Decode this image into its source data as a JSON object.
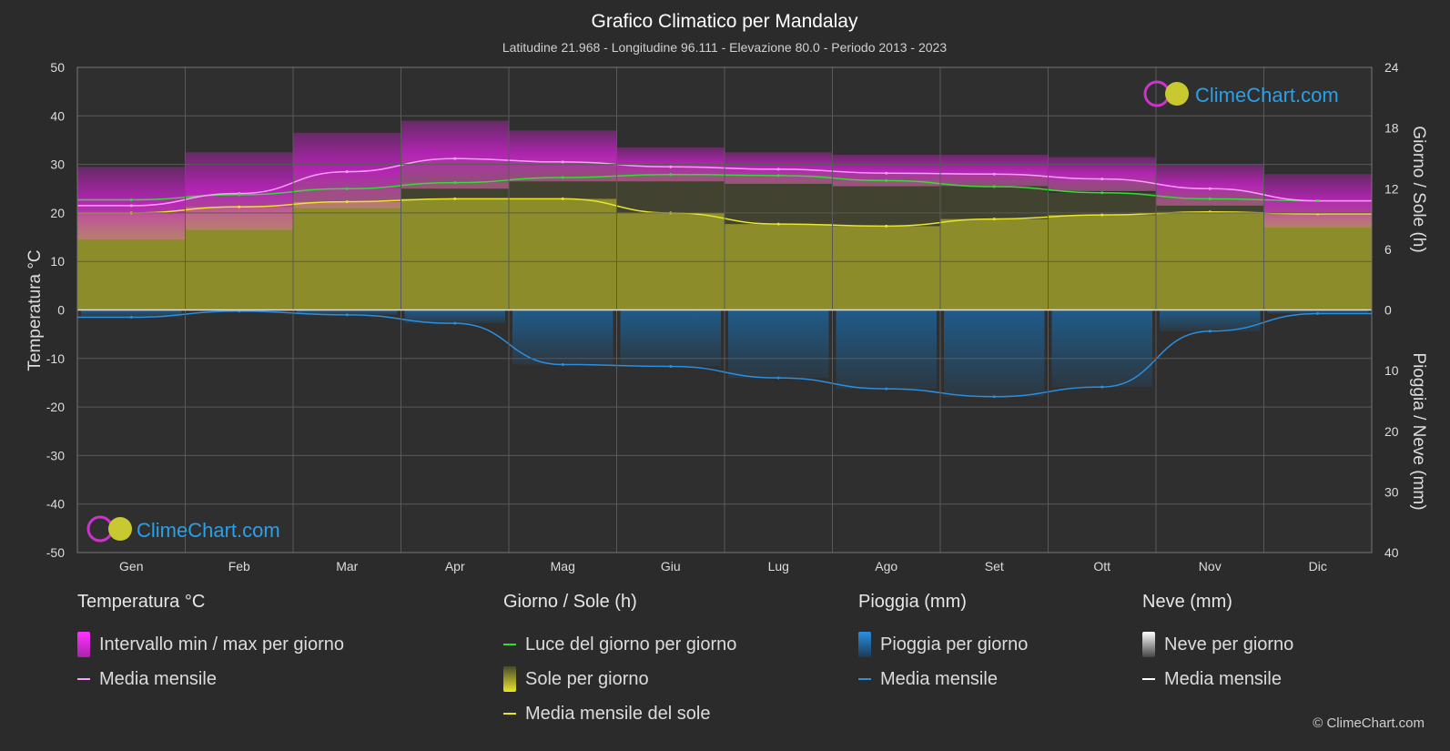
{
  "header": {
    "title": "Grafico Climatico per Mandalay",
    "subtitle": "Latitudine 21.968 - Longitudine 96.111 - Elevazione 80.0 - Periodo 2013 - 2023"
  },
  "watermark": "ClimeChart.com",
  "copyright": "© ClimeChart.com",
  "colors": {
    "background": "#2b2b2b",
    "temp_range": "#cc22cc",
    "temp_mean": "#ff9cff",
    "daylight": "#33dd33",
    "sun_fill": "#9c9c2a",
    "sun_mean": "#e6e62a",
    "rain": "#1a6aa8",
    "rain_mean": "#2a8fe0",
    "snow_mean": "#ffffff"
  },
  "chart_data": {
    "type": "area",
    "categories": [
      "Gen",
      "Feb",
      "Mar",
      "Apr",
      "Mag",
      "Giu",
      "Lug",
      "Ago",
      "Set",
      "Ott",
      "Nov",
      "Dic"
    ],
    "y_left": {
      "label": "Temperatura °C",
      "range": [
        -50,
        50
      ],
      "ticks": [
        "50",
        "40",
        "30",
        "20",
        "10",
        "0",
        "-10",
        "-20",
        "-30",
        "-40",
        "-50"
      ]
    },
    "y_right_top": {
      "label": "Giorno / Sole (h)",
      "range": [
        0,
        24
      ],
      "ticks": [
        "24",
        "18",
        "12",
        "6",
        "0"
      ]
    },
    "y_right_bottom": {
      "label": "Pioggia / Neve (mm)",
      "range": [
        0,
        40
      ],
      "ticks": [
        "0",
        "10",
        "20",
        "30",
        "40"
      ]
    },
    "series": [
      {
        "name": "Media mensile",
        "group": "temperature",
        "values": [
          21.5,
          24.0,
          28.5,
          31.2,
          30.5,
          29.5,
          29.0,
          28.2,
          28.0,
          27.0,
          25.0,
          22.5
        ]
      },
      {
        "name": "Intervallo min / max per giorno",
        "group": "temperature",
        "min": [
          14.5,
          16.5,
          21.0,
          25.0,
          26.5,
          26.5,
          26.0,
          25.5,
          25.5,
          24.5,
          21.5,
          17.0
        ],
        "max": [
          29.5,
          32.5,
          36.5,
          39.0,
          37.0,
          33.5,
          32.5,
          32.0,
          32.0,
          31.5,
          30.0,
          28.0
        ]
      },
      {
        "name": "Luce del giorno per giorno",
        "group": "sun",
        "values": [
          10.9,
          11.4,
          12.0,
          12.6,
          13.1,
          13.4,
          13.3,
          12.8,
          12.2,
          11.6,
          11.0,
          10.8
        ]
      },
      {
        "name": "Media mensile del sole",
        "group": "sun",
        "values": [
          9.6,
          10.2,
          10.7,
          11.0,
          11.0,
          9.6,
          8.5,
          8.3,
          9.0,
          9.4,
          9.7,
          9.5
        ]
      },
      {
        "name": "Media mensile",
        "group": "rain",
        "values": [
          1.2,
          0.2,
          0.8,
          2.2,
          9.0,
          9.3,
          11.2,
          13.0,
          14.3,
          12.7,
          3.5,
          0.6
        ]
      },
      {
        "name": "Media mensile",
        "group": "snow",
        "values": [
          0,
          0,
          0,
          0,
          0,
          0,
          0,
          0,
          0,
          0,
          0,
          0
        ]
      }
    ],
    "legend_placement": "bottom",
    "grid": true
  },
  "legend": {
    "temperature": {
      "title": "Temperatura °C",
      "items": [
        "Intervallo min / max per giorno",
        "Media mensile"
      ]
    },
    "sun": {
      "title": "Giorno / Sole (h)",
      "items": [
        "Luce del giorno per giorno",
        "Sole per giorno",
        "Media mensile del sole"
      ]
    },
    "rain": {
      "title": "Pioggia (mm)",
      "items": [
        "Pioggia per giorno",
        "Media mensile"
      ]
    },
    "snow": {
      "title": "Neve (mm)",
      "items": [
        "Neve per giorno",
        "Media mensile"
      ]
    }
  }
}
